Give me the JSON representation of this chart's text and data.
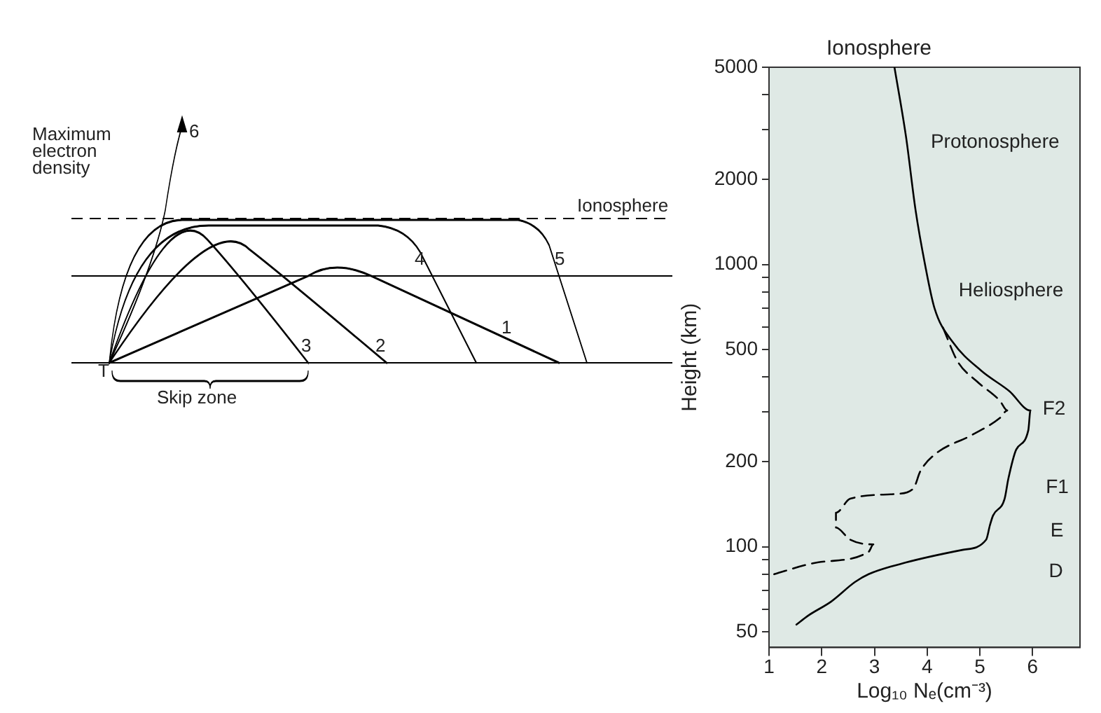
{
  "chart_data": [
    {
      "type": "other",
      "annotations": [
        "Maximum electron density",
        "Ionosphere",
        "6",
        "4",
        "5",
        "3",
        "2",
        "1",
        "T",
        "Skip zone"
      ]
    },
    {
      "type": "line",
      "title": "Ionosphere",
      "xlabel": "Log₁₀ Nₑ(cm⁻³)",
      "ylabel": "Height (km)",
      "log": "y",
      "xlim": [
        1,
        6.9
      ],
      "xticks": [
        1,
        2,
        3,
        4,
        5,
        6
      ],
      "ylim": [
        44,
        5000
      ],
      "yticks": [
        50,
        {
          "value": 60,
          "label": null
        },
        {
          "value": 70,
          "label": null
        },
        {
          "value": 80,
          "label": null
        },
        {
          "value": 90,
          "label": null
        },
        100,
        200,
        {
          "value": 300,
          "label": null
        },
        {
          "value": 400,
          "label": null
        },
        500,
        {
          "value": 600,
          "label": null
        },
        {
          "value": 700,
          "label": null
        },
        {
          "value": 800,
          "label": null
        },
        {
          "value": 900,
          "label": null
        },
        1000,
        2000,
        {
          "value": 3000,
          "label": null
        },
        {
          "value": 4000,
          "label": null
        },
        5000
      ],
      "grid": false,
      "legend": false,
      "marker": "none",
      "series": [
        {
          "color": "#000000",
          "line_style": "solid",
          "x": [
            3.38,
            3.6,
            3.78,
            3.96,
            4.14,
            4.49,
            5.03,
            5.56,
            5.96,
            5.92,
            5.69,
            5.54,
            5.47,
            5.25,
            5.19,
            5.12,
            4.67,
            3.6,
            2.89,
            2.63,
            2.18,
            1.74,
            1.52
          ],
          "values": [
            5000,
            2830,
            1560,
            1000,
            700,
            530,
            420,
            356,
            304,
            259,
            221,
            174,
            148,
            129,
            119,
            106,
            97.5,
            88,
            80,
            75,
            64,
            57,
            53
          ]
        },
        {
          "color": "#000000",
          "line_style": "dashed",
          "x": [
            4.3,
            4.58,
            4.94,
            5.38,
            5.52,
            5.38,
            4.85,
            4.14,
            3.87,
            3.74,
            3.43,
            2.54,
            2.27,
            2.27,
            2.54,
            2.98,
            2.89,
            1.92,
            1.0
          ],
          "values": [
            598,
            453,
            386,
            329,
            304,
            286,
            249,
            212,
            185,
            161,
            154,
            148,
            132,
            117,
            106,
            102,
            96,
            88,
            79
          ]
        }
      ],
      "annotations": [
        "Protonosphere",
        "Heliosphere",
        "F2",
        "F1",
        "E",
        "D"
      ]
    }
  ]
}
